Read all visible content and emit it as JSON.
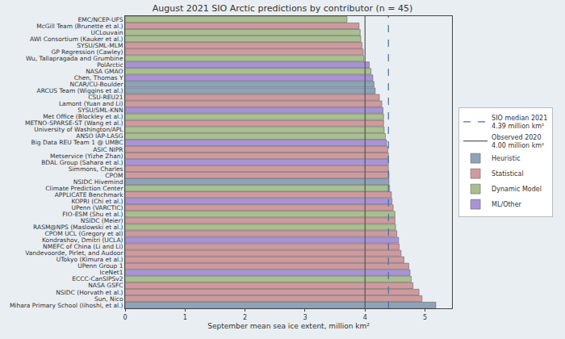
{
  "chart_data": {
    "type": "bar",
    "orientation": "horizontal",
    "title": "August 2021 SIO Arctic predictions by contributor (n = 45)",
    "x_label": "September mean sea ice extent, million km²",
    "categories": [
      "EMC/NCEP-UFS",
      "McGill Team (Brunette et al.)",
      "UCLouvain",
      "AWI Consortium (Kauker et al.)",
      "SYSU/SML-MLM",
      "GP Regression (Cawley)",
      "Wu, Tallapragada and Grumbine",
      "PolArctic",
      "NASA GMAO",
      "Chen, Thomas Y",
      "NCAR/CU-Boulder",
      "ARCUS Team (Wiggins et al.)",
      "CSU-REU21",
      "Lamont (Yuan and Li)",
      "SYSU/SML-KNN",
      "Met Office (Blockley et al.)",
      "METNO-SPARSE-ST (Wang et al.)",
      "University of Washington/APL",
      "ANSO IAP-LASG",
      "Big Data REU Team 1 @ UMBC",
      "ASIC NIPR",
      "Metservice (Yizhe Zhan)",
      "BDAL Group (Sahara et al.)",
      "Simmons, Charles",
      "CPOM",
      "NSIDC Hivemind",
      "Climate Prediction Center",
      "APPLICATE Benchmark",
      "KOPRI (Chi et al.)",
      "UPenn (VARCTIC)",
      "FIO-ESM (Shu et al.)",
      "NSIDC (Meier)",
      "RASM@NPS (Maslowski et al.)",
      "CPOM UCL (Gregory et al)",
      "Kondrashov, Dmitri (UCLA)",
      "NMEFC of China (Li and Li)",
      "Vandevoorde, Pirlet, and Audoor",
      "UTokyo (Kimura et al.)",
      "UPenn Group 1",
      "IceNet1",
      "ECCC-CanSIPSv2",
      "NASA GSFC",
      "NSIDC (Horvath et al.)",
      "Sun, Nico",
      "Mihara Primary School (Iihoshi, et al.)"
    ],
    "series": [
      {
        "name": "Heuristic",
        "color": "#8fa3b8",
        "values": [
          null,
          null,
          null,
          null,
          null,
          null,
          null,
          null,
          null,
          null,
          4.15,
          4.17,
          null,
          null,
          null,
          null,
          null,
          null,
          null,
          null,
          null,
          null,
          null,
          null,
          null,
          4.4,
          null,
          null,
          null,
          null,
          null,
          null,
          null,
          null,
          null,
          null,
          null,
          null,
          null,
          null,
          null,
          null,
          null,
          null,
          5.18
        ]
      },
      {
        "name": "Statistical",
        "color": "#cf9a9e",
        "values": [
          null,
          3.9,
          null,
          null,
          3.95,
          3.97,
          null,
          null,
          null,
          null,
          null,
          null,
          4.24,
          4.28,
          null,
          null,
          4.31,
          null,
          null,
          null,
          4.38,
          4.39,
          null,
          4.39,
          4.4,
          null,
          null,
          4.44,
          null,
          4.47,
          null,
          4.5,
          null,
          4.53,
          null,
          4.57,
          4.6,
          4.65,
          4.73,
          null,
          null,
          4.8,
          4.9,
          4.95,
          null
        ]
      },
      {
        "name": "Dynamic Model",
        "color": "#a9bf8f",
        "values": [
          3.7,
          null,
          3.92,
          3.93,
          null,
          null,
          3.98,
          null,
          4.1,
          null,
          null,
          null,
          null,
          null,
          null,
          4.31,
          null,
          4.32,
          4.34,
          null,
          null,
          null,
          null,
          null,
          null,
          null,
          4.41,
          null,
          null,
          null,
          4.5,
          null,
          4.51,
          null,
          null,
          null,
          null,
          null,
          null,
          null,
          4.77,
          null,
          null,
          null,
          null
        ]
      },
      {
        "name": "ML/Other",
        "color": "#a993d6",
        "values": [
          null,
          null,
          null,
          null,
          null,
          null,
          null,
          4.07,
          null,
          4.13,
          null,
          null,
          null,
          null,
          4.3,
          null,
          null,
          null,
          null,
          4.36,
          null,
          null,
          4.39,
          null,
          null,
          null,
          null,
          null,
          4.45,
          null,
          null,
          null,
          null,
          null,
          4.56,
          null,
          null,
          null,
          null,
          4.75,
          null,
          null,
          null,
          null,
          null
        ]
      }
    ],
    "reference_lines": [
      {
        "name": "SIO median 2021\n4.39 million km²",
        "value": 4.39,
        "color": "#4a6fa5",
        "line_style": "dashed"
      },
      {
        "name": "Observed 2020\n4.00 million km²",
        "value": 4.0,
        "color": "#555555",
        "line_style": "solid"
      }
    ],
    "xlim": [
      0,
      5.45
    ],
    "xticks": [
      0,
      1,
      2,
      3,
      4,
      5
    ],
    "grid": false,
    "legend": "right"
  }
}
